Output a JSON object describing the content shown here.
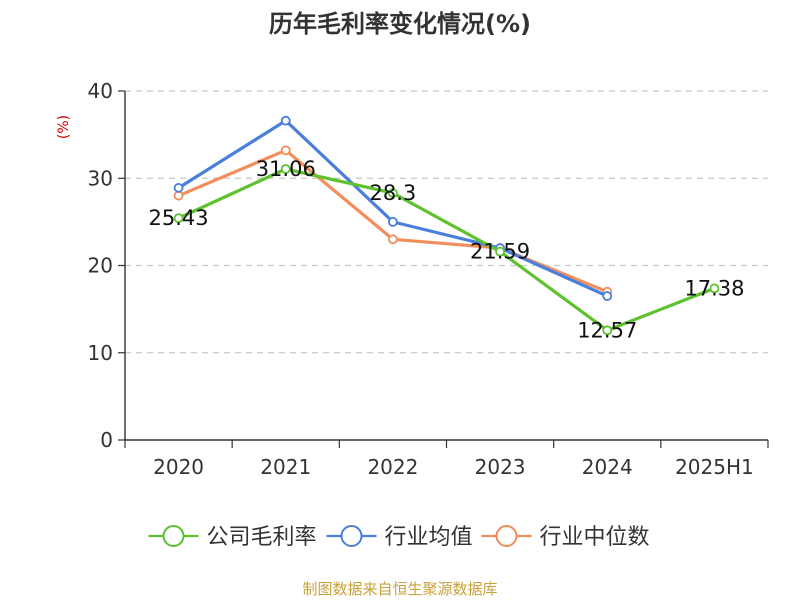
{
  "chart_data": {
    "type": "line",
    "title": "历年毛利率变化情况(%)",
    "ylabel": "(%)",
    "categories": [
      "2020",
      "2021",
      "2022",
      "2023",
      "2024",
      "2025H1"
    ],
    "ylim": [
      0,
      40
    ],
    "yticks": [
      0,
      10,
      20,
      30,
      40
    ],
    "grid": true,
    "legend_position": "bottom",
    "series": [
      {
        "name": "公司毛利率",
        "color": "#5ec22e",
        "values": [
          25.43,
          31.06,
          28.3,
          21.59,
          12.57,
          17.38
        ],
        "labels": [
          "25.43",
          "31.06",
          "28.3",
          "21.59",
          "12.57",
          "17.38"
        ]
      },
      {
        "name": "行业均值",
        "color": "#4a7fdc",
        "values": [
          28.9,
          36.6,
          25.0,
          22.0,
          16.5,
          null
        ]
      },
      {
        "name": "行业中位数",
        "color": "#f28e5b",
        "values": [
          28.0,
          33.2,
          23.0,
          22.0,
          17.0,
          null
        ]
      }
    ]
  },
  "footer": {
    "source": "制图数据来自恒生聚源数据库",
    "source_color": "#c9a13a"
  }
}
